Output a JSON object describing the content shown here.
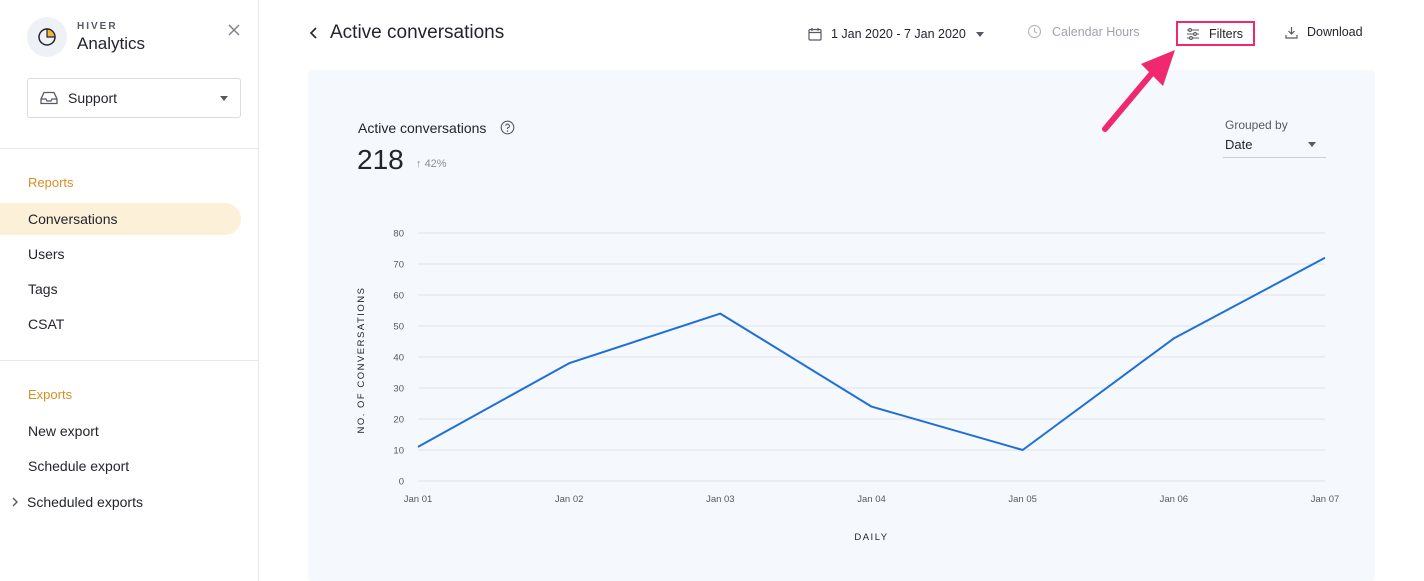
{
  "brand": {
    "small": "HIVER",
    "name": "Analytics"
  },
  "sidebar": {
    "inbox": "Support",
    "reports_title": "Reports",
    "reports": [
      {
        "label": "Conversations",
        "active": true
      },
      {
        "label": "Users"
      },
      {
        "label": "Tags"
      },
      {
        "label": "CSAT"
      }
    ],
    "exports_title": "Exports",
    "exports": [
      {
        "label": "New export"
      },
      {
        "label": "Schedule export"
      },
      {
        "label": "Scheduled exports"
      }
    ]
  },
  "header": {
    "title": "Active conversations",
    "date_range": "1 Jan 2020 - 7 Jan 2020",
    "calendar_hours": "Calendar Hours",
    "filters": "Filters",
    "download": "Download"
  },
  "metric": {
    "label": "Active conversations",
    "value": "218",
    "delta": "42%"
  },
  "grouping": {
    "label": "Grouped by",
    "value": "Date"
  },
  "colors": {
    "accent": "#d98e1f",
    "active_bg": "#fdf0d9",
    "line": "#1f6fd6",
    "highlight": "#f0286e"
  },
  "chart_data": {
    "type": "line",
    "categories": [
      "Jan 01",
      "Jan 02",
      "Jan 03",
      "Jan 04",
      "Jan 05",
      "Jan 06",
      "Jan 07"
    ],
    "series": [
      {
        "values": [
          11,
          38,
          54,
          24,
          10,
          46,
          72
        ]
      }
    ],
    "yticks": [
      0,
      10,
      20,
      30,
      40,
      50,
      60,
      70,
      80
    ],
    "ylim": [
      0,
      80
    ],
    "xlabel": "DAILY",
    "ylabel": "NO. OF CONVERSATIONS",
    "grid": true
  }
}
